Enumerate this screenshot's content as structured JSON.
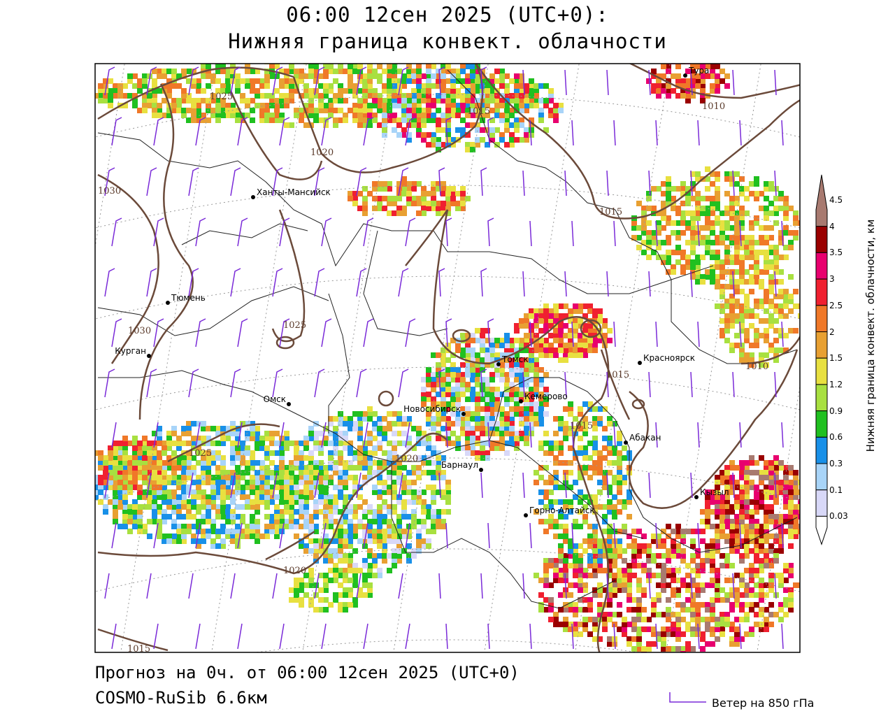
{
  "header": {
    "title_line1": "06:00 12сен 2025 (UTC+0):",
    "title_line2": "Нижняя граница конвект. облачности"
  },
  "footer": {
    "forecast_line": "Прогноз на 0ч. от 06:00 12сен 2025 (UTC+0)",
    "model_line": "COSMO-RuSib 6.6км",
    "wind_legend": "Ветер на 850 гПа"
  },
  "legend": {
    "title": "Нижняя граница конвект. облачности, км",
    "levels": [
      {
        "label": "4.5",
        "color": "#a87a70"
      },
      {
        "label": "4",
        "color": "#9a0000"
      },
      {
        "label": "3.5",
        "color": "#e8006e"
      },
      {
        "label": "3",
        "color": "#f02030"
      },
      {
        "label": "2.5",
        "color": "#f07828"
      },
      {
        "label": "2",
        "color": "#e8a032"
      },
      {
        "label": "1.5",
        "color": "#e8e040"
      },
      {
        "label": "1.2",
        "color": "#a8e040"
      },
      {
        "label": "0.9",
        "color": "#20c020"
      },
      {
        "label": "0.6",
        "color": "#1890e8"
      },
      {
        "label": "0.3",
        "color": "#a8d4f8"
      },
      {
        "label": "0.1",
        "color": "#d8d8f8"
      },
      {
        "label": "0.03",
        "color": "#ffffff"
      }
    ]
  },
  "cities": [
    {
      "name": "Тура"
    },
    {
      "name": "Ханты-Мансийск"
    },
    {
      "name": "Тюмень"
    },
    {
      "name": "Курган"
    },
    {
      "name": "Омск"
    },
    {
      "name": "Новосибирск"
    },
    {
      "name": "Томск"
    },
    {
      "name": "Кемерово"
    },
    {
      "name": "Красноярск"
    },
    {
      "name": "Абакан"
    },
    {
      "name": "Барнаул"
    },
    {
      "name": "Горно-Алтайск"
    },
    {
      "name": "Кызыл"
    }
  ],
  "isobars": [
    "1025",
    "1015",
    "1020",
    "1010",
    "1030",
    "1015",
    "1030",
    "1025",
    "1015",
    "1010",
    "1015",
    "1025",
    "1020",
    "1020",
    "1015"
  ]
}
